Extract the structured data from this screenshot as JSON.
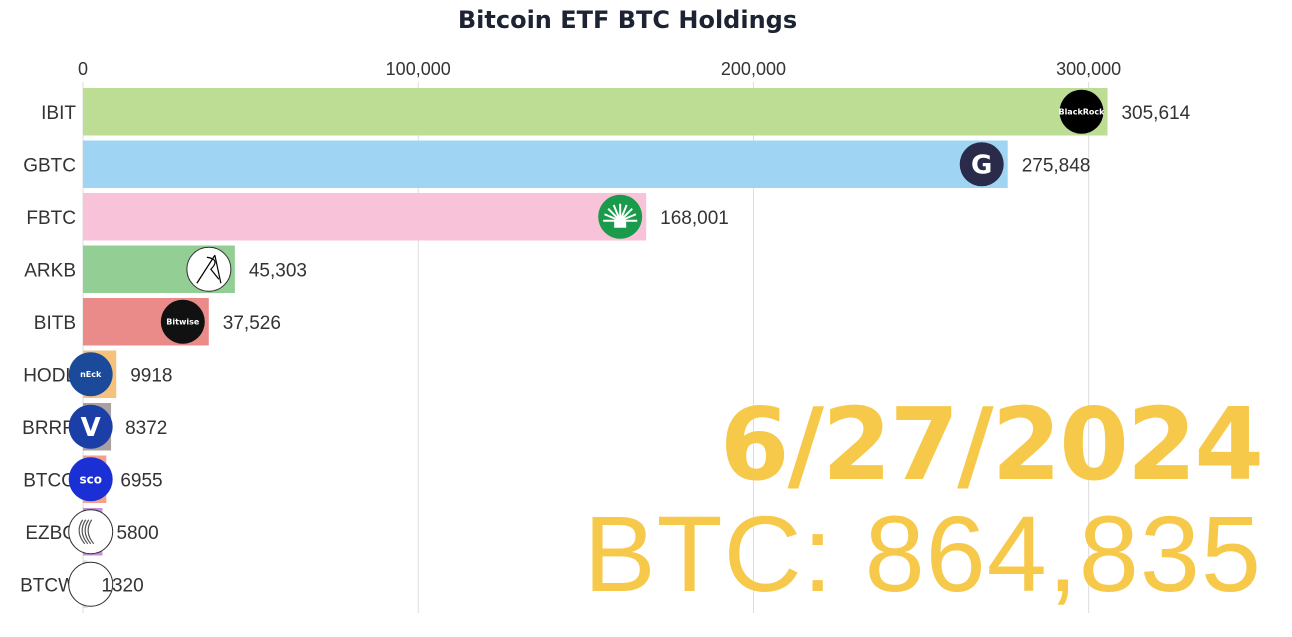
{
  "chart_data": {
    "type": "bar",
    "orientation": "horizontal",
    "title": "Bitcoin ETF BTC Holdings",
    "xlabel": "",
    "ylabel": "",
    "xlim": [
      0,
      335000
    ],
    "x_ticks": [
      0,
      100000,
      200000,
      300000
    ],
    "x_tick_labels": [
      "0",
      "100,000",
      "200,000",
      "300,000"
    ],
    "grid": true,
    "categories": [
      "IBIT",
      "GBTC",
      "FBTC",
      "ARKB",
      "BITB",
      "HODL",
      "BRRR",
      "BTCO",
      "EZBC",
      "BTCW"
    ],
    "values": [
      305614,
      275848,
      168001,
      45303,
      37526,
      9918,
      8372,
      6955,
      5800,
      1320
    ],
    "value_labels": [
      "305,614",
      "275,848",
      "168,001",
      "45,303",
      "37,526",
      "9918",
      "8372",
      "6955",
      "5800",
      "1320"
    ],
    "colors": [
      "#bddc94",
      "#9fd5f3",
      "#f8c3d8",
      "#93cf94",
      "#ea8b8a",
      "#f5c27e",
      "#a9a1a1",
      "#f3a18a",
      "#c490d8",
      "#dcdcdc"
    ],
    "logos": [
      {
        "name": "blackrock-logo",
        "text": "BlackRock",
        "bg": "#000000",
        "fg": "#ffffff"
      },
      {
        "name": "grayscale-logo",
        "text": "G",
        "bg": "#2a2a4a",
        "fg": "#ffffff"
      },
      {
        "name": "fidelity-logo",
        "text": "",
        "bg": "#1a9b4b",
        "fg": "#ffffff"
      },
      {
        "name": "ark-logo",
        "text": "",
        "bg": "#ffffff",
        "fg": "#000000"
      },
      {
        "name": "bitwise-logo",
        "text": "Bitwise",
        "bg": "#111111",
        "fg": "#ffffff"
      },
      {
        "name": "vaneck-logo",
        "text": "nEck",
        "bg": "#1b4a9a",
        "fg": "#ffffff"
      },
      {
        "name": "valkyrie-logo",
        "text": "V",
        "bg": "#1b3fa6",
        "fg": "#ffffff"
      },
      {
        "name": "invesco-logo",
        "text": "sco",
        "bg": "#1a2fd4",
        "fg": "#ffffff"
      },
      {
        "name": "franklin-logo",
        "text": "",
        "bg": "#ffffff",
        "fg": "#333333"
      },
      {
        "name": "wisdomtree-logo",
        "text": "",
        "bg": "#ffffff",
        "fg": "#333333"
      }
    ]
  },
  "overlay": {
    "date": "6/27/2024",
    "btc_total": "BTC: 864,835"
  },
  "colors": {
    "title": "#1c2333",
    "overlay": "#f7c94b",
    "gridline": "#dddddd",
    "text": "#333333"
  }
}
